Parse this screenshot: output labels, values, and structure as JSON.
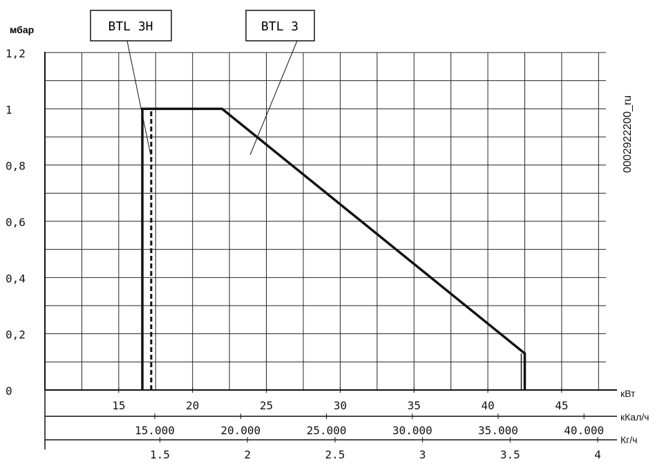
{
  "chart_data": {
    "type": "line",
    "ylabel": "мбар",
    "yticks": [
      "1,2",
      "1",
      "0,8",
      "0,6",
      "0,4",
      "0,2",
      "0"
    ],
    "ylim": [
      0,
      1.2
    ],
    "xlim_kw": [
      10,
      48
    ],
    "axes": [
      {
        "unit": "кВт",
        "ticks": [
          "15",
          "20",
          "25",
          "30",
          "35",
          "40",
          "45"
        ],
        "tick_values": [
          15,
          20,
          25,
          30,
          35,
          40,
          45
        ]
      },
      {
        "unit": "кКал/ч",
        "ticks": [
          "15.000",
          "20.000",
          "25.000",
          "30.000",
          "35.000",
          "40.000"
        ],
        "tick_values": [
          15000,
          20000,
          25000,
          30000,
          35000,
          40000
        ]
      },
      {
        "unit": "Кг/ч",
        "ticks": [
          "1.5",
          "2",
          "2.5",
          "3",
          "3.5",
          "4"
        ],
        "tick_values": [
          1.5,
          2,
          2.5,
          3,
          3.5,
          4
        ]
      }
    ],
    "series": [
      {
        "name": "BTL 3H",
        "style": "dashed",
        "x": [
          17.2,
          17.2
        ],
        "y": [
          0,
          1
        ]
      },
      {
        "name": "BTL 3",
        "style": "solid",
        "x": [
          16.6,
          16.6,
          22.0,
          42.5,
          42.5
        ],
        "y": [
          0,
          1,
          1,
          0.13,
          0
        ]
      }
    ],
    "grid": true,
    "side_text": "0002922200_ru"
  }
}
